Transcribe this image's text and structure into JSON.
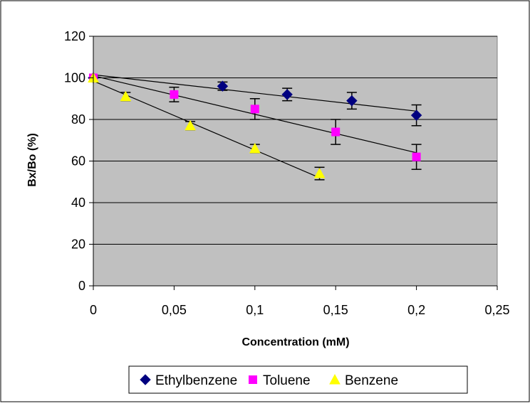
{
  "chart_data": {
    "type": "scatter",
    "title": "",
    "xlabel": "Concentration (mM)",
    "ylabel": "Bx/Bo (%)",
    "xlim": [
      0,
      0.25
    ],
    "ylim": [
      0,
      120
    ],
    "x_ticks": [
      "0",
      "0,05",
      "0,1",
      "0,15",
      "0,2",
      "0,25"
    ],
    "y_ticks": [
      "0",
      "20",
      "40",
      "60",
      "80",
      "100",
      "120"
    ],
    "grid": "horizontal",
    "plot_background": "#c0c0c0",
    "legend_position": "bottom",
    "series": [
      {
        "name": "Ethylbenzene",
        "marker": "diamond",
        "color": "#000080",
        "x": [
          0,
          0.08,
          0.12,
          0.16,
          0.2
        ],
        "y": [
          100,
          96,
          92,
          89,
          82
        ],
        "error": [
          0,
          2,
          3,
          4,
          5
        ],
        "trend": [
          [
            0,
            101.5
          ],
          [
            0.2,
            84
          ]
        ]
      },
      {
        "name": "Toluene",
        "marker": "square",
        "color": "#ff00ff",
        "x": [
          0,
          0.05,
          0.1,
          0.15,
          0.2
        ],
        "y": [
          100,
          92,
          85,
          74,
          62
        ],
        "error": [
          0,
          3.5,
          5,
          6,
          6
        ],
        "trend": [
          [
            0,
            101
          ],
          [
            0.2,
            64
          ]
        ]
      },
      {
        "name": "Benzene",
        "marker": "triangle",
        "color": "#ffff00",
        "x": [
          0,
          0.02,
          0.06,
          0.1,
          0.14
        ],
        "y": [
          100,
          91,
          77,
          66,
          54
        ],
        "error": [
          0,
          2,
          2,
          2,
          3
        ],
        "trend": [
          [
            0,
            98.5
          ],
          [
            0.14,
            52
          ]
        ]
      }
    ]
  }
}
